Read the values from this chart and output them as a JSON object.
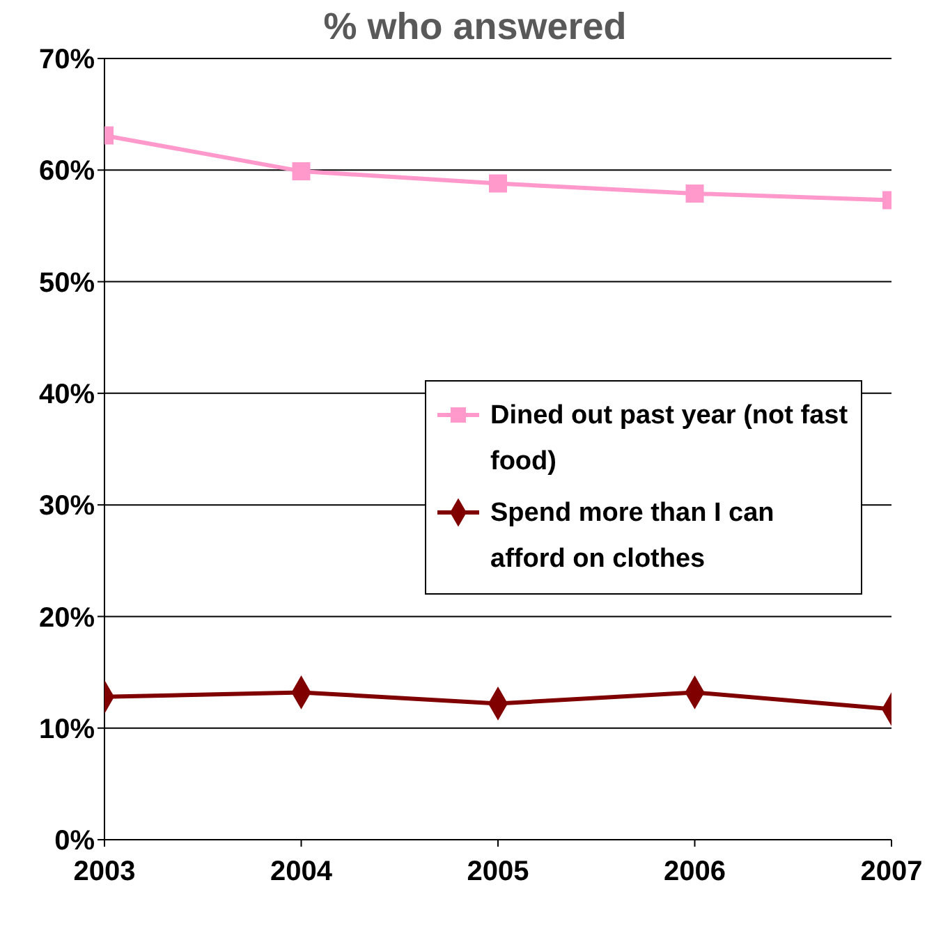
{
  "chart_data": {
    "type": "line",
    "title": "% who answered",
    "x": [
      2003,
      2004,
      2005,
      2006,
      2007
    ],
    "xlim": [
      2003,
      2007
    ],
    "xticks": [
      2003,
      2004,
      2005,
      2006,
      2007
    ],
    "ylim": [
      0,
      0.7
    ],
    "yticks": [
      {
        "value": 0,
        "label": "0%"
      },
      {
        "value": 0.1,
        "label": "10%"
      },
      {
        "value": 0.2,
        "label": "20%"
      },
      {
        "value": 0.3,
        "label": "30%"
      },
      {
        "value": 0.4,
        "label": "40%"
      },
      {
        "value": 0.5,
        "label": "50%"
      },
      {
        "value": 0.6,
        "label": "60%"
      },
      {
        "value": 0.7,
        "label": "70%"
      }
    ],
    "grid": "y",
    "legend": "right",
    "series": [
      {
        "name": "Dined out past year (not fast food)",
        "color": "#ff99cc",
        "marker": "square",
        "values": [
          0.631,
          0.599,
          0.588,
          0.579,
          0.573
        ]
      },
      {
        "name": "Spend more than I can afford on clothes",
        "color": "#800000",
        "marker": "diamond",
        "values": [
          0.128,
          0.132,
          0.122,
          0.132,
          0.117
        ]
      }
    ]
  }
}
